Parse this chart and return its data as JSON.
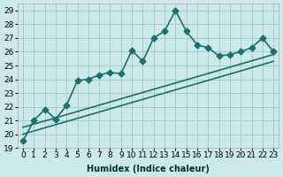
{
  "xlabel": "Humidex (Indice chaleur)",
  "ylabel": "",
  "bg_color": "#cce8e8",
  "grid_color": "#aacccc",
  "line_color": "#1a7070",
  "xlim": [
    -0.5,
    23.5
  ],
  "ylim": [
    19,
    29.5
  ],
  "yticks": [
    19,
    20,
    21,
    22,
    23,
    24,
    25,
    26,
    27,
    28,
    29
  ],
  "xticks": [
    0,
    1,
    2,
    3,
    4,
    5,
    6,
    7,
    8,
    9,
    10,
    11,
    12,
    13,
    14,
    15,
    16,
    17,
    18,
    19,
    20,
    21,
    22,
    23
  ],
  "jagged_x": [
    0,
    1,
    2,
    3,
    4,
    5,
    6,
    7,
    8,
    9,
    10,
    11,
    12,
    13,
    14,
    15,
    16,
    17,
    18,
    19,
    20,
    21,
    22,
    23
  ],
  "jagged_y": [
    19.5,
    21.0,
    21.8,
    21.1,
    22.1,
    23.9,
    24.0,
    24.3,
    24.5,
    24.4,
    26.1,
    25.3,
    27.0,
    27.5,
    29.0,
    27.5,
    26.5,
    26.3,
    25.7,
    25.8,
    26.0,
    26.3,
    27.0,
    26.0
  ],
  "line1_x": [
    0,
    23
  ],
  "line1_y": [
    20.5,
    25.8
  ],
  "line2_x": [
    0,
    23
  ],
  "line2_y": [
    20.0,
    25.3
  ],
  "marker_size": 3.5,
  "line_width": 1.2,
  "tick_fontsize": 6.5
}
